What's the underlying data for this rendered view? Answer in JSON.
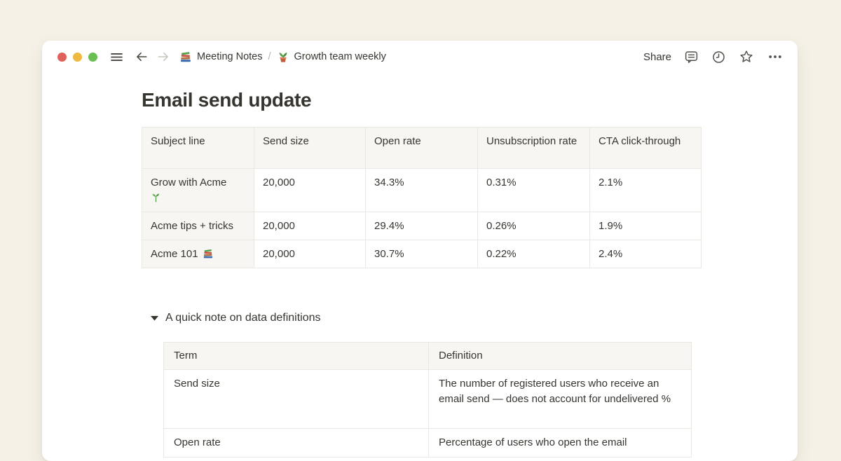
{
  "theme": {
    "canvas_bg": "#F6F1E6",
    "card_bg": "#FFFFFF",
    "text_color": "#37352F",
    "table_border": "#E9E8E3",
    "table_header_bg": "#F7F6F3",
    "traffic_red": "#E0605A",
    "traffic_yellow": "#EFB93F",
    "traffic_green": "#68BD53"
  },
  "topbar": {
    "window_controls": [
      "close",
      "minimize",
      "zoom"
    ],
    "menu_icon": "hamburger-icon",
    "back_icon": "back-arrow-icon",
    "forward_icon": "forward-arrow-icon",
    "breadcrumb": {
      "parent": {
        "icon": "books-emoji",
        "label": "Meeting Notes"
      },
      "separator": "/",
      "current": {
        "icon": "potted-plant-emoji",
        "label": "Growth team weekly"
      }
    },
    "share_label": "Share",
    "action_icons": [
      "comment-icon",
      "clock-icon",
      "star-icon",
      "more-icon"
    ]
  },
  "page": {
    "title": "Email send update",
    "toggle": {
      "icon": "triangle-down-icon",
      "label": "A quick note on data definitions",
      "expanded": true
    }
  },
  "email_table": {
    "headers": [
      "Subject line",
      "Send size",
      "Open rate",
      "Unsubscription rate",
      "CTA click-through"
    ],
    "rows": [
      {
        "subject": "Grow with Acme",
        "subject_icon": "seedling-emoji",
        "icon_position": "new-line",
        "values": [
          "20,000",
          "34.3%",
          "0.31%",
          "2.1%"
        ]
      },
      {
        "subject": "Acme tips + tricks",
        "subject_icon": null,
        "icon_position": null,
        "values": [
          "20,000",
          "29.4%",
          "0.26%",
          "1.9%"
        ]
      },
      {
        "subject": "Acme 101",
        "subject_icon": "books-emoji",
        "icon_position": "inline",
        "values": [
          "20,000",
          "30.7%",
          "0.22%",
          "2.4%"
        ]
      }
    ]
  },
  "definitions_table": {
    "headers": [
      "Term",
      "Definition"
    ],
    "rows": [
      {
        "term": "Send size",
        "definition": "The number of registered users who receive an email send — does not account for undelivered %"
      },
      {
        "term": "Open rate",
        "definition": "Percentage of users who open the email"
      }
    ]
  }
}
